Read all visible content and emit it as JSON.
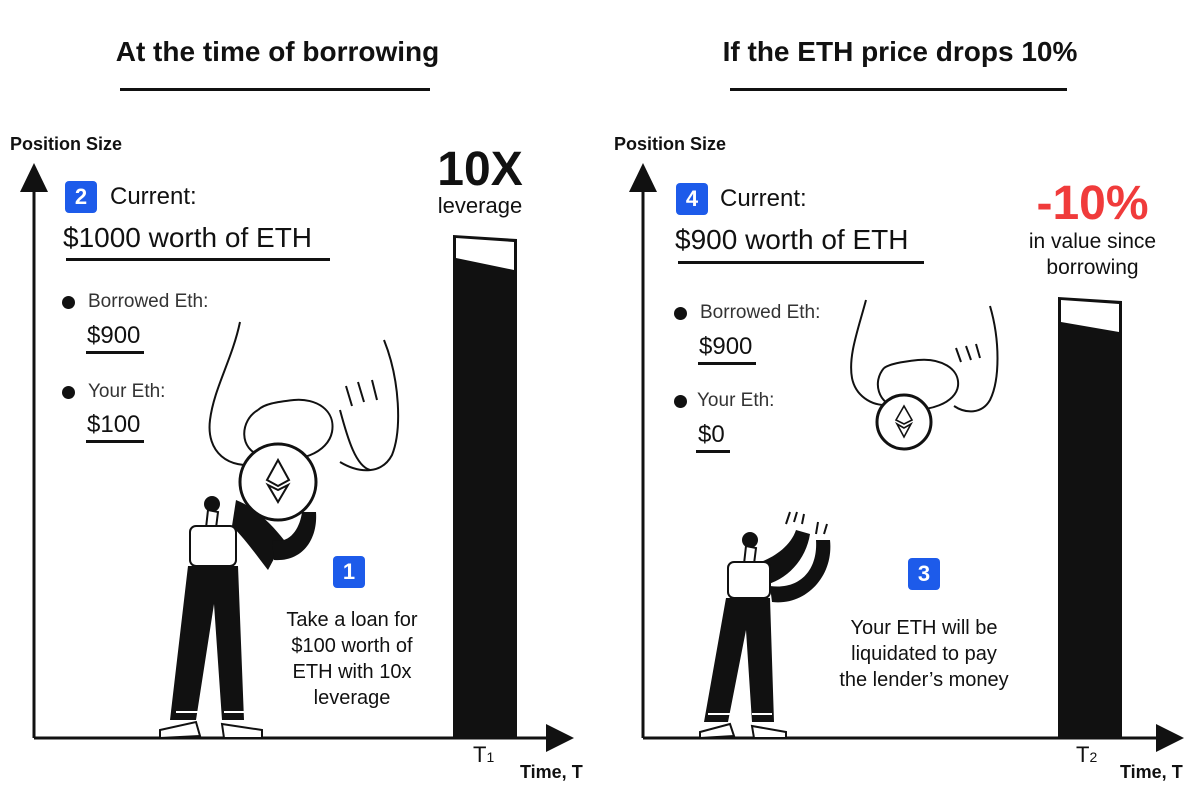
{
  "left_panel": {
    "title": "At the time of borrowing",
    "y_axis_label": "Position Size",
    "x_axis_label": "Time, T",
    "time_tick": "T",
    "time_tick_sub": "1",
    "step_current_badge": "2",
    "current_label": "Current:",
    "current_value": "$1000 worth of ETH",
    "borrowed_label": "Borrowed Eth:",
    "borrowed_value": "$900",
    "your_label": "Your Eth:",
    "your_value": "$100",
    "bar_mark": "10X",
    "bar_mark_sub": "leverage",
    "step_caption_badge": "1",
    "caption_lines": [
      "Take a loan for",
      "$100 worth of",
      "ETH with 10x",
      "leverage"
    ]
  },
  "right_panel": {
    "title": "If the ETH price drops 10%",
    "y_axis_label": "Position Size",
    "x_axis_label": "Time, T",
    "time_tick": "T",
    "time_tick_sub": "2",
    "step_current_badge": "4",
    "current_label": "Current:",
    "current_value": "$900 worth of ETH",
    "borrowed_label": "Borrowed Eth:",
    "borrowed_value": "$900",
    "your_label": "Your Eth:",
    "your_value": "$0",
    "bar_mark": "-10%",
    "bar_mark_sub_lines": [
      "in value since",
      "borrowing"
    ],
    "step_caption_badge": "3",
    "caption_lines": [
      "Your ETH will be",
      "liquidated to pay",
      "the lender’s money"
    ]
  },
  "colors": {
    "accent_blue": "#1d5bea",
    "drop_red": "#f03b3b",
    "ink": "#111111"
  },
  "icons": [
    "ethereum-coin-icon",
    "hand-illustration",
    "person-illustration"
  ]
}
